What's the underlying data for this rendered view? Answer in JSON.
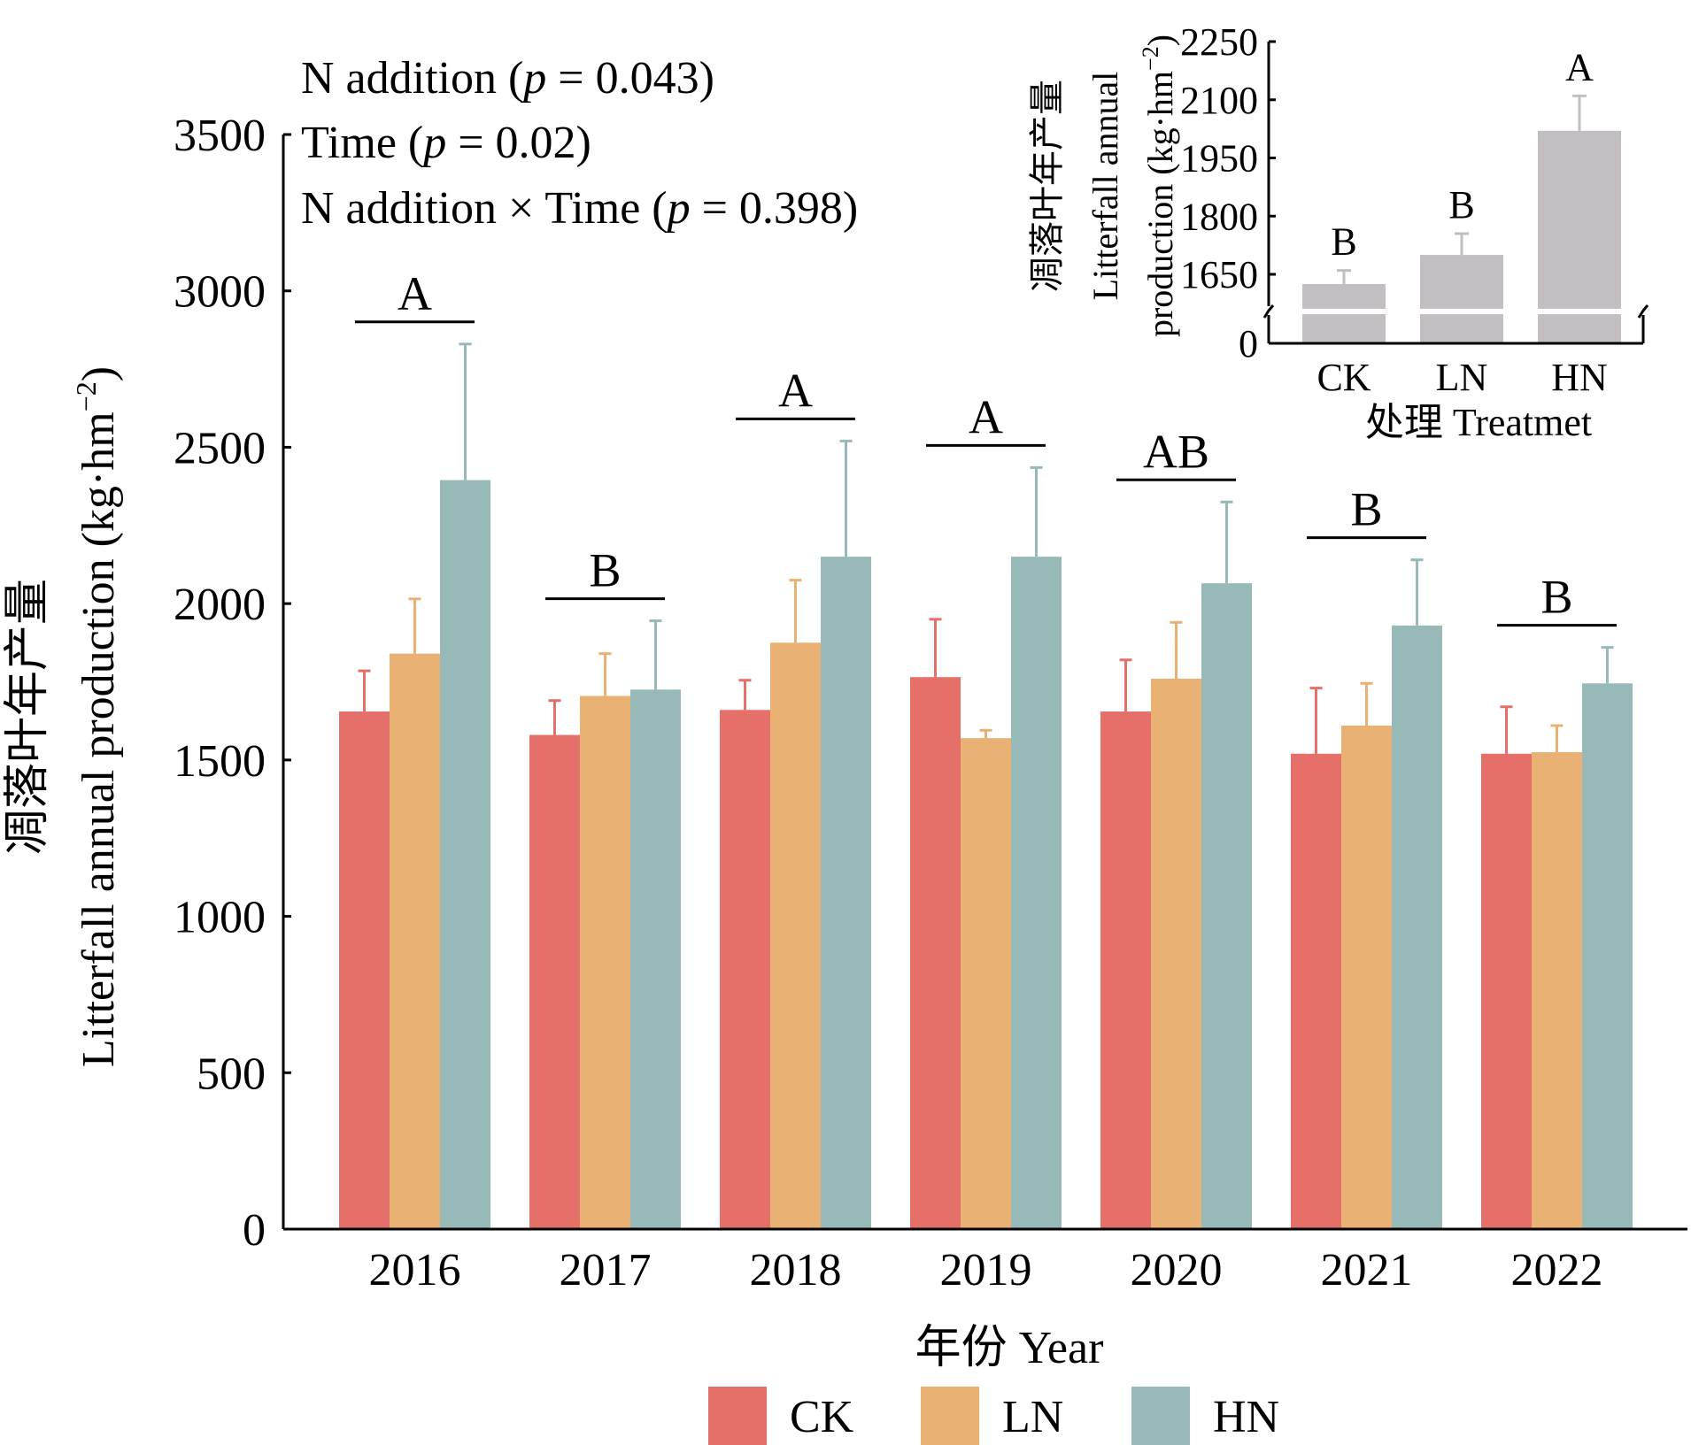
{
  "chart_data": [
    {
      "type": "bar",
      "xlabel": "年份 Year",
      "ylabel_cn": "凋落叶年产量",
      "ylabel_en": "Litterfall annual production (kg·hm",
      "ylabel_sup": "−2",
      "ylabel_close": ")",
      "ylim": [
        0,
        3500
      ],
      "yticks": [
        0,
        500,
        1000,
        1500,
        2000,
        2500,
        3000,
        3500
      ],
      "categories": [
        "2016",
        "2017",
        "2018",
        "2019",
        "2020",
        "2021",
        "2022"
      ],
      "series": [
        {
          "name": "CK",
          "color": "#e5706a",
          "values": [
            1655,
            1580,
            1660,
            1765,
            1655,
            1520,
            1520
          ],
          "errors": [
            130,
            110,
            95,
            185,
            165,
            210,
            150
          ]
        },
        {
          "name": "LN",
          "color": "#e9b274",
          "values": [
            1840,
            1705,
            1875,
            1570,
            1760,
            1610,
            1525
          ],
          "errors": [
            175,
            135,
            200,
            25,
            180,
            135,
            85
          ]
        },
        {
          "name": "HN",
          "color": "#97b9b8",
          "values": [
            2395,
            1725,
            2150,
            2150,
            2065,
            1930,
            1745
          ],
          "errors": [
            435,
            220,
            370,
            285,
            260,
            210,
            115
          ]
        }
      ],
      "group_letters": [
        "A",
        "B",
        "A",
        "A",
        "AB",
        "B",
        "B"
      ],
      "annotations": [
        {
          "text": "N addition (",
          "p": "p",
          "rest": " = 0.043)"
        },
        {
          "text": "Time (",
          "p": "p",
          "rest": " = 0.02)"
        },
        {
          "text": "N addition × Time (",
          "p": "p",
          "rest": " = 0.398)"
        }
      ],
      "legend": [
        "CK",
        "LN",
        "HN"
      ],
      "legend_position": "bottom"
    },
    {
      "type": "bar",
      "xlabel": "处理 Treatmet",
      "ylabel_cn": "凋落叶年产量",
      "ylabel_en1": "Litterfall annual",
      "ylabel_en2": "production (kg·hm",
      "ylabel_sup": "−2",
      "ylabel_close": ")",
      "axis_break": true,
      "yticks": [
        0,
        1650,
        1800,
        1950,
        2100,
        2250
      ],
      "ylim": [
        1500,
        2250
      ],
      "categories": [
        "CK",
        "LN",
        "HN"
      ],
      "values": [
        1625,
        1700,
        2020
      ],
      "errors": [
        35,
        55,
        90
      ],
      "letters": [
        "B",
        "B",
        "A"
      ],
      "color": "#c3bec2"
    }
  ]
}
